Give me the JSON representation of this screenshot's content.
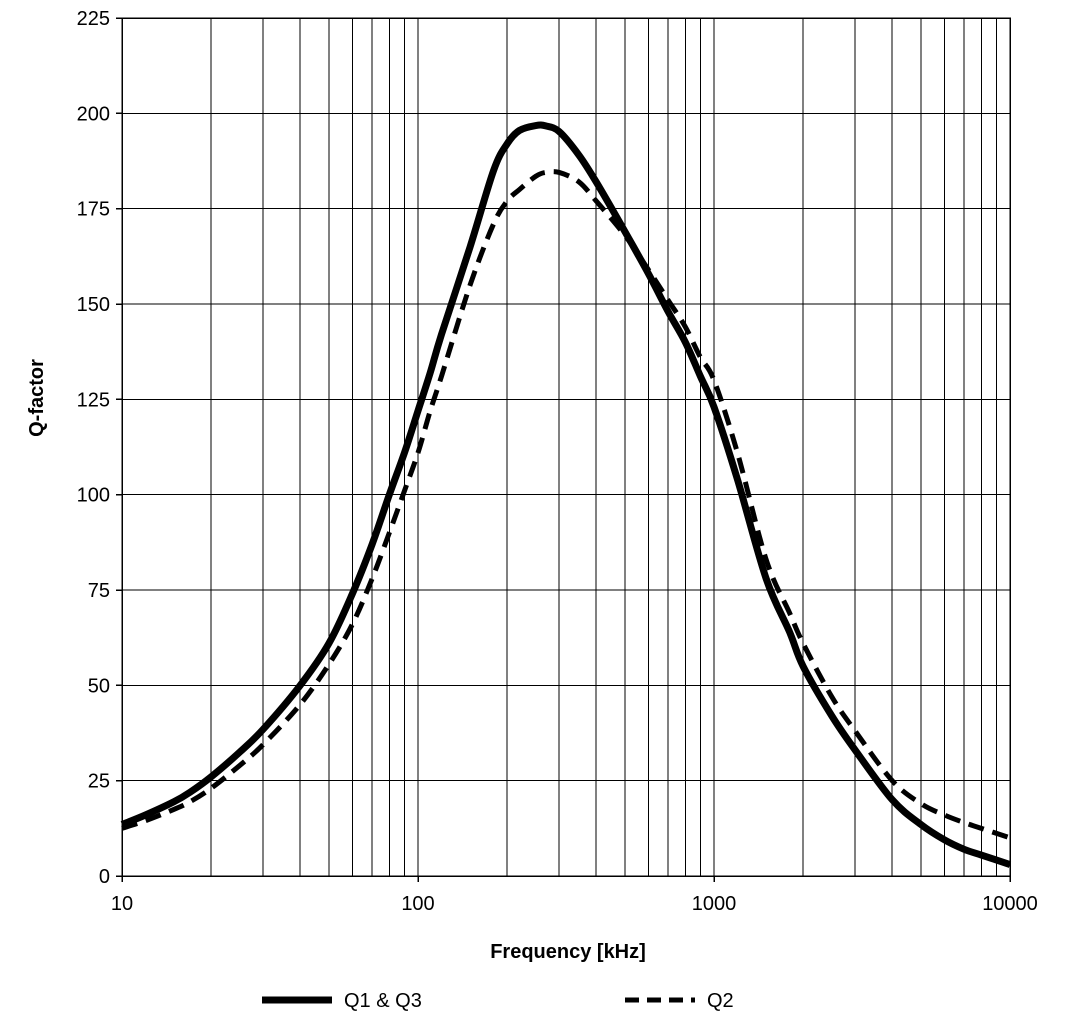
{
  "chart_data": {
    "type": "line",
    "xlabel": "Frequency [kHz]",
    "ylabel": "Q-factor",
    "x_scale": "log",
    "xlim": [
      10,
      10000
    ],
    "ylim": [
      0,
      225
    ],
    "x_ticks": [
      10,
      100,
      1000,
      10000
    ],
    "x_tick_labels": [
      "10",
      "100",
      "1000",
      "10000"
    ],
    "y_ticks": [
      0,
      25,
      50,
      75,
      100,
      125,
      150,
      175,
      200,
      225
    ],
    "y_tick_labels": [
      "0",
      "25",
      "50",
      "75",
      "100",
      "125",
      "150",
      "175",
      "200",
      "225"
    ],
    "grid": true,
    "legend_position": "bottom",
    "series": [
      {
        "name": "Q1 & Q3",
        "style": "solid-thick",
        "color": "#000000",
        "x": [
          10,
          12,
          15,
          17,
          20,
          25,
          30,
          40,
          50,
          60,
          70,
          80,
          90,
          100,
          110,
          120,
          150,
          180,
          200,
          220,
          250,
          270,
          300,
          350,
          400,
          500,
          600,
          700,
          800,
          900,
          1000,
          1200,
          1500,
          1800,
          2000,
          2500,
          3000,
          4000,
          5000,
          6000,
          7000,
          8000,
          10000
        ],
        "y": [
          13.5,
          16,
          19.5,
          22,
          26,
          32.5,
          38.5,
          50,
          61,
          74,
          87,
          100,
          111,
          122,
          132,
          142,
          165,
          185,
          192,
          195.5,
          196.8,
          196.7,
          195.2,
          189,
          182,
          169,
          158,
          148,
          140,
          131,
          123,
          104,
          78,
          64,
          55,
          42,
          33,
          20,
          13.5,
          9.5,
          7,
          5.5,
          3
        ]
      },
      {
        "name": "Q2",
        "style": "dashed",
        "color": "#000000",
        "x": [
          10,
          12,
          15,
          17,
          20,
          25,
          30,
          40,
          50,
          60,
          70,
          80,
          90,
          100,
          110,
          120,
          150,
          180,
          200,
          220,
          250,
          270,
          300,
          350,
          400,
          500,
          600,
          700,
          800,
          900,
          1000,
          1200,
          1500,
          1800,
          2000,
          2500,
          3000,
          4000,
          5000,
          6000,
          7000,
          8000,
          10000
        ],
        "y": [
          12.5,
          14.5,
          17.5,
          19.5,
          23,
          29,
          34.5,
          45,
          55.5,
          66,
          78,
          90,
          101,
          111,
          122,
          131,
          155,
          171,
          177,
          180,
          183.5,
          184.5,
          184.5,
          182,
          177,
          168,
          159,
          151,
          144,
          136,
          130,
          111,
          83,
          69,
          61,
          47,
          38,
          25,
          19,
          16,
          14,
          12.5,
          10
        ]
      }
    ]
  }
}
